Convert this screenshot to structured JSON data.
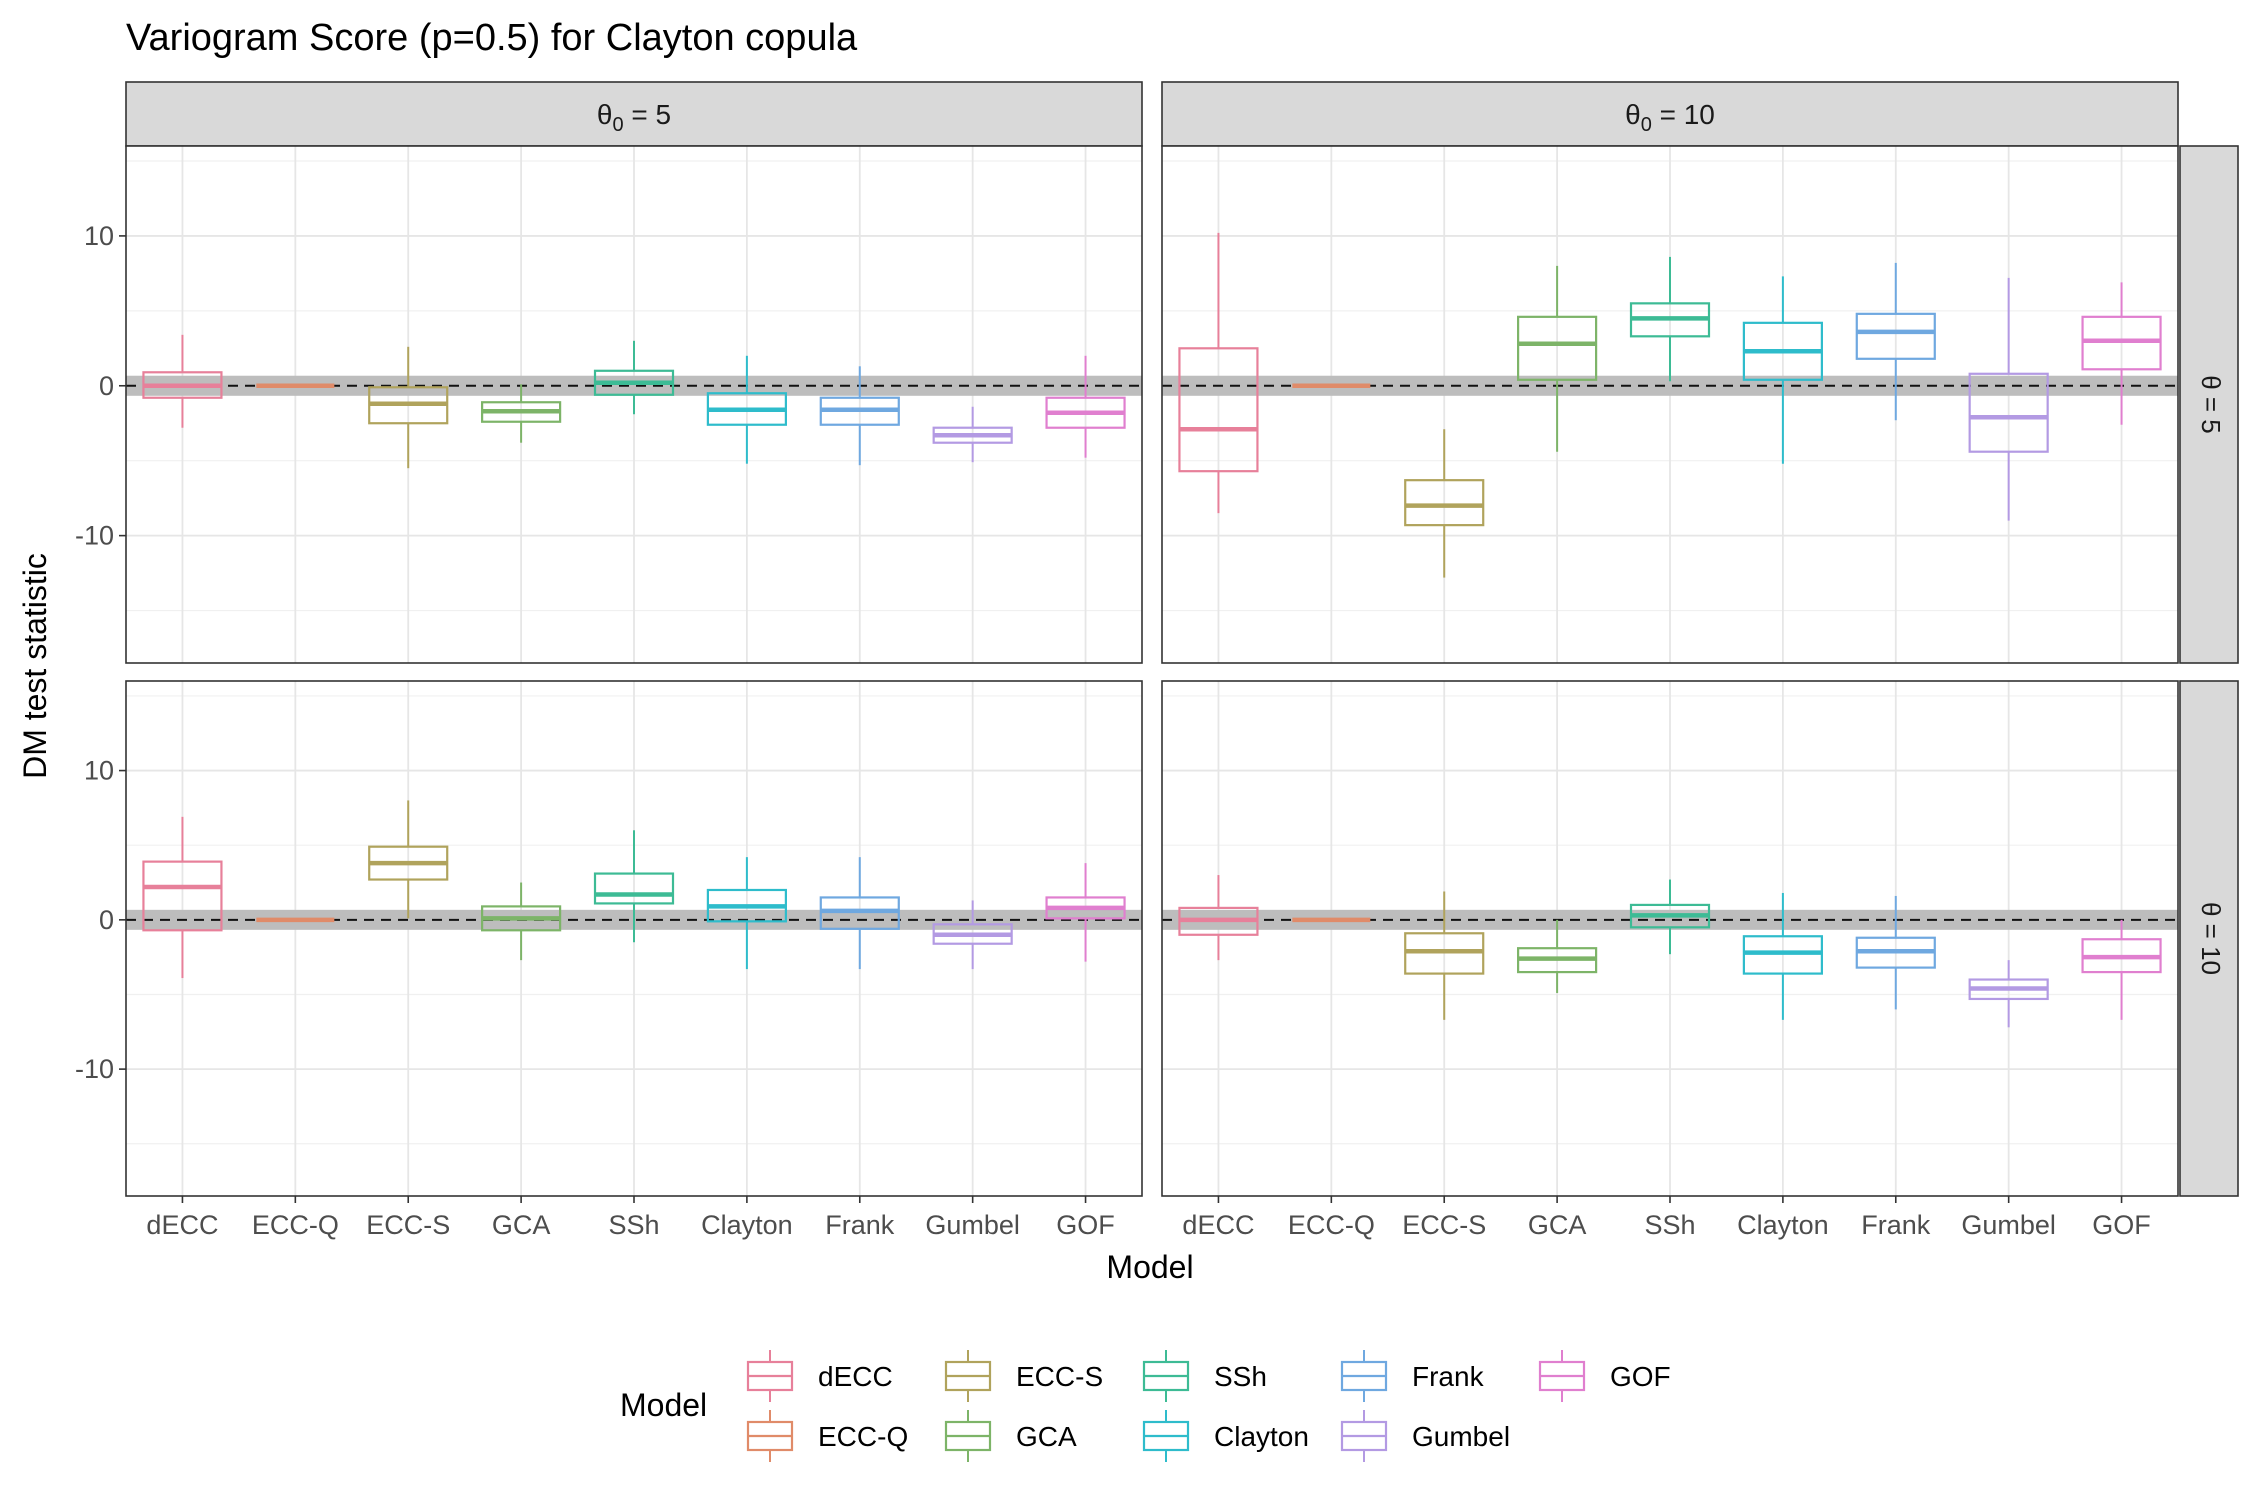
{
  "chart_data": {
    "type": "boxplot",
    "title": "Variogram Score (p=0.5) for Clayton copula",
    "xlabel": "Model",
    "ylabel": "DM test statistic",
    "ylim": [
      -18.5,
      16
    ],
    "yticks": [
      -10,
      0,
      10
    ],
    "categories": [
      "dECC",
      "ECC-Q",
      "ECC-S",
      "GCA",
      "SSh",
      "Clayton",
      "Frank",
      "Gumbel",
      "GOF"
    ],
    "colors": {
      "dECC": "#e7809a",
      "ECC-Q": "#e08b69",
      "ECC-S": "#b0a35c",
      "GCA": "#7db468",
      "SSh": "#3dbb95",
      "Clayton": "#2ebccb",
      "Frank": "#6fa8e0",
      "Gumbel": "#b39ae3",
      "GOF": "#e07fcf"
    },
    "band": [
      -0.67,
      0.67
    ],
    "reference_line": 0,
    "col_strips": [
      {
        "base": "θ",
        "sub": "0",
        "rest": " = 5"
      },
      {
        "base": "θ",
        "sub": "0",
        "rest": " = 10"
      }
    ],
    "row_strips": [
      "θ = 5",
      "θ = 10"
    ],
    "panels": [
      {
        "row": 0,
        "col": 0,
        "boxes": [
          {
            "model": "dECC",
            "low": -2.8,
            "q1": -0.8,
            "median": 0,
            "q3": 0.9,
            "high": 3.4
          },
          {
            "model": "ECC-Q",
            "low": 0,
            "q1": 0,
            "median": 0,
            "q3": 0,
            "high": 0
          },
          {
            "model": "ECC-S",
            "low": -5.5,
            "q1": -2.5,
            "median": -1.2,
            "q3": -0.1,
            "high": 2.6
          },
          {
            "model": "GCA",
            "low": -3.8,
            "q1": -2.4,
            "median": -1.7,
            "q3": -1.1,
            "high": 0.1
          },
          {
            "model": "SSh",
            "low": -1.9,
            "q1": -0.6,
            "median": 0.2,
            "q3": 1.0,
            "high": 3.0
          },
          {
            "model": "Clayton",
            "low": -5.2,
            "q1": -2.6,
            "median": -1.6,
            "q3": -0.5,
            "high": 2.0
          },
          {
            "model": "Frank",
            "low": -5.3,
            "q1": -2.6,
            "median": -1.6,
            "q3": -0.8,
            "high": 1.3
          },
          {
            "model": "Gumbel",
            "low": -5.1,
            "q1": -3.8,
            "median": -3.3,
            "q3": -2.8,
            "high": -1.4
          },
          {
            "model": "GOF",
            "low": -4.8,
            "q1": -2.8,
            "median": -1.8,
            "q3": -0.8,
            "high": 2.0
          }
        ]
      },
      {
        "row": 0,
        "col": 1,
        "boxes": [
          {
            "model": "dECC",
            "low": -8.5,
            "q1": -5.7,
            "median": -2.9,
            "q3": 2.5,
            "high": 10.2
          },
          {
            "model": "ECC-Q",
            "low": 0,
            "q1": 0,
            "median": 0,
            "q3": 0,
            "high": 0
          },
          {
            "model": "ECC-S",
            "low": -12.8,
            "q1": -9.3,
            "median": -8.0,
            "q3": -6.3,
            "high": -2.9
          },
          {
            "model": "GCA",
            "low": -4.4,
            "q1": 0.4,
            "median": 2.8,
            "q3": 4.6,
            "high": 8.0
          },
          {
            "model": "SSh",
            "low": 0.3,
            "q1": 3.3,
            "median": 4.5,
            "q3": 5.5,
            "high": 8.6
          },
          {
            "model": "Clayton",
            "low": -5.2,
            "q1": 0.4,
            "median": 2.3,
            "q3": 4.2,
            "high": 7.3
          },
          {
            "model": "Frank",
            "low": -2.3,
            "q1": 1.8,
            "median": 3.6,
            "q3": 4.8,
            "high": 8.2
          },
          {
            "model": "Gumbel",
            "low": -9.0,
            "q1": -4.4,
            "median": -2.1,
            "q3": 0.8,
            "high": 7.2
          },
          {
            "model": "GOF",
            "low": -2.6,
            "q1": 1.1,
            "median": 3.0,
            "q3": 4.6,
            "high": 6.9
          }
        ]
      },
      {
        "row": 1,
        "col": 0,
        "boxes": [
          {
            "model": "dECC",
            "low": -3.9,
            "q1": -0.7,
            "median": 2.2,
            "q3": 3.9,
            "high": 6.9
          },
          {
            "model": "ECC-Q",
            "low": 0,
            "q1": 0,
            "median": 0,
            "q3": 0,
            "high": 0
          },
          {
            "model": "ECC-S",
            "low": 0.1,
            "q1": 2.7,
            "median": 3.8,
            "q3": 4.9,
            "high": 8.0
          },
          {
            "model": "GCA",
            "low": -2.7,
            "q1": -0.7,
            "median": 0.1,
            "q3": 0.9,
            "high": 2.5
          },
          {
            "model": "SSh",
            "low": -1.5,
            "q1": 1.1,
            "median": 1.7,
            "q3": 3.1,
            "high": 6.0
          },
          {
            "model": "Clayton",
            "low": -3.3,
            "q1": -0.1,
            "median": 0.9,
            "q3": 2.0,
            "high": 4.2
          },
          {
            "model": "Frank",
            "low": -3.3,
            "q1": -0.6,
            "median": 0.6,
            "q3": 1.5,
            "high": 4.2
          },
          {
            "model": "Gumbel",
            "low": -3.3,
            "q1": -1.6,
            "median": -1.0,
            "q3": -0.3,
            "high": 1.3
          },
          {
            "model": "GOF",
            "low": -2.8,
            "q1": 0.1,
            "median": 0.8,
            "q3": 1.5,
            "high": 3.8
          }
        ]
      },
      {
        "row": 1,
        "col": 1,
        "boxes": [
          {
            "model": "dECC",
            "low": -2.7,
            "q1": -1.0,
            "median": 0.0,
            "q3": 0.8,
            "high": 3.0
          },
          {
            "model": "ECC-Q",
            "low": 0,
            "q1": 0,
            "median": 0,
            "q3": 0,
            "high": 0
          },
          {
            "model": "ECC-S",
            "low": -6.7,
            "q1": -3.6,
            "median": -2.1,
            "q3": -0.9,
            "high": 1.9
          },
          {
            "model": "GCA",
            "low": -4.9,
            "q1": -3.5,
            "median": -2.6,
            "q3": -1.9,
            "high": 0.0
          },
          {
            "model": "SSh",
            "low": -2.3,
            "q1": -0.5,
            "median": 0.3,
            "q3": 1.0,
            "high": 2.7
          },
          {
            "model": "Clayton",
            "low": -6.7,
            "q1": -3.6,
            "median": -2.2,
            "q3": -1.1,
            "high": 1.8
          },
          {
            "model": "Frank",
            "low": -6.0,
            "q1": -3.2,
            "median": -2.1,
            "q3": -1.2,
            "high": 1.6
          },
          {
            "model": "Gumbel",
            "low": -7.2,
            "q1": -5.3,
            "median": -4.6,
            "q3": -4.0,
            "high": -2.7
          },
          {
            "model": "GOF",
            "low": -6.7,
            "q1": -3.5,
            "median": -2.5,
            "q3": -1.3,
            "high": 0.0
          }
        ]
      }
    ],
    "legend": {
      "title": "Model",
      "position": "bottom",
      "entries": [
        "dECC",
        "ECC-Q",
        "ECC-S",
        "GCA",
        "SSh",
        "Clayton",
        "Frank",
        "Gumbel",
        "GOF"
      ]
    },
    "grid": true
  }
}
